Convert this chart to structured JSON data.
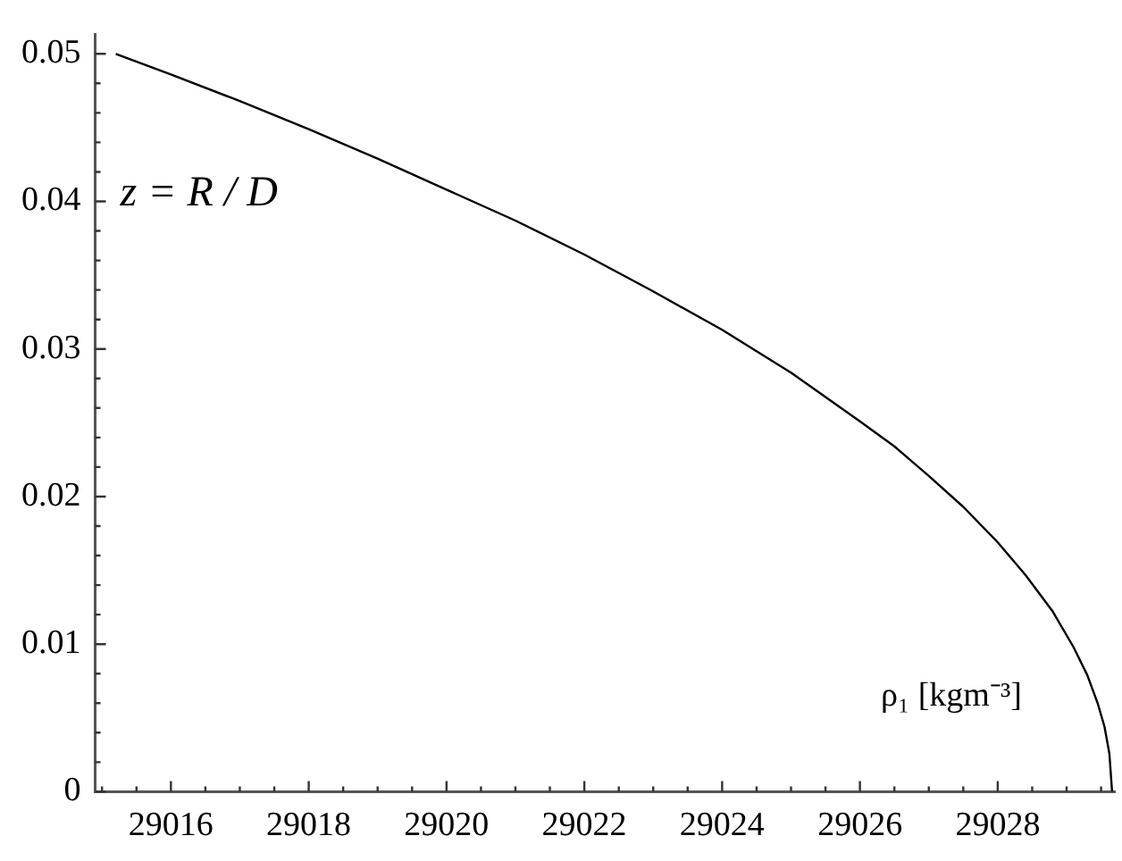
{
  "chart_data": {
    "type": "line",
    "xlabel": "ρ₁ [kgm⁻³]",
    "ylabel": "z = R / D",
    "x": [
      29015.2,
      29016,
      29017,
      29018,
      29019,
      29020,
      29021,
      29022,
      29023,
      29024,
      29025,
      29026,
      29026.5,
      29027,
      29027.5,
      29028,
      29028.4,
      29028.8,
      29029.1,
      29029.3,
      29029.45,
      29029.55,
      29029.62,
      29029.66
    ],
    "values": [
      0.05,
      0.0486,
      0.0468,
      0.0449,
      0.0429,
      0.0408,
      0.0387,
      0.0364,
      0.0339,
      0.0313,
      0.0284,
      0.0251,
      0.0234,
      0.0214,
      0.0193,
      0.0169,
      0.0147,
      0.0122,
      0.0098,
      0.0079,
      0.006,
      0.0044,
      0.0026,
      0
    ],
    "color": "#000000",
    "xlim": [
      29014.9,
      29029.7
    ],
    "ylim": [
      0,
      0.0513
    ],
    "xticks": [
      {
        "value": 29015,
        "label": null
      },
      {
        "value": 29015.5,
        "label": null
      },
      29016,
      {
        "value": 29016.5,
        "label": null
      },
      {
        "value": 29017,
        "label": null
      },
      {
        "value": 29017.5,
        "label": null
      },
      29018,
      {
        "value": 29018.5,
        "label": null
      },
      {
        "value": 29019,
        "label": null
      },
      {
        "value": 29019.5,
        "label": null
      },
      29020,
      {
        "value": 29020.5,
        "label": null
      },
      {
        "value": 29021,
        "label": null
      },
      {
        "value": 29021.5,
        "label": null
      },
      29022,
      {
        "value": 29022.5,
        "label": null
      },
      {
        "value": 29023,
        "label": null
      },
      {
        "value": 29023.5,
        "label": null
      },
      29024,
      {
        "value": 29024.5,
        "label": null
      },
      {
        "value": 29025,
        "label": null
      },
      {
        "value": 29025.5,
        "label": null
      },
      29026,
      {
        "value": 29026.5,
        "label": null
      },
      {
        "value": 29027,
        "label": null
      },
      {
        "value": 29027.5,
        "label": null
      },
      29028,
      {
        "value": 29028.5,
        "label": null
      },
      {
        "value": 29029,
        "label": null
      },
      {
        "value": 29029.5,
        "label": null
      }
    ],
    "yticks": [
      0,
      {
        "value": 0.002,
        "label": null
      },
      {
        "value": 0.004,
        "label": null
      },
      {
        "value": 0.006,
        "label": null
      },
      {
        "value": 0.008,
        "label": null
      },
      0.01,
      {
        "value": 0.012,
        "label": null
      },
      {
        "value": 0.014,
        "label": null
      },
      {
        "value": 0.016,
        "label": null
      },
      {
        "value": 0.018,
        "label": null
      },
      0.02,
      {
        "value": 0.022,
        "label": null
      },
      {
        "value": 0.024,
        "label": null
      },
      {
        "value": 0.026,
        "label": null
      },
      {
        "value": 0.028,
        "label": null
      },
      0.03,
      {
        "value": 0.032,
        "label": null
      },
      {
        "value": 0.034,
        "label": null
      },
      {
        "value": 0.036,
        "label": null
      },
      {
        "value": 0.038,
        "label": null
      },
      0.04,
      {
        "value": 0.042,
        "label": null
      },
      {
        "value": 0.044,
        "label": null
      },
      {
        "value": 0.046,
        "label": null
      },
      {
        "value": 0.048,
        "label": null
      },
      0.05
    ],
    "grid": false,
    "legend": false,
    "marker": "none",
    "line_style": "solid"
  }
}
